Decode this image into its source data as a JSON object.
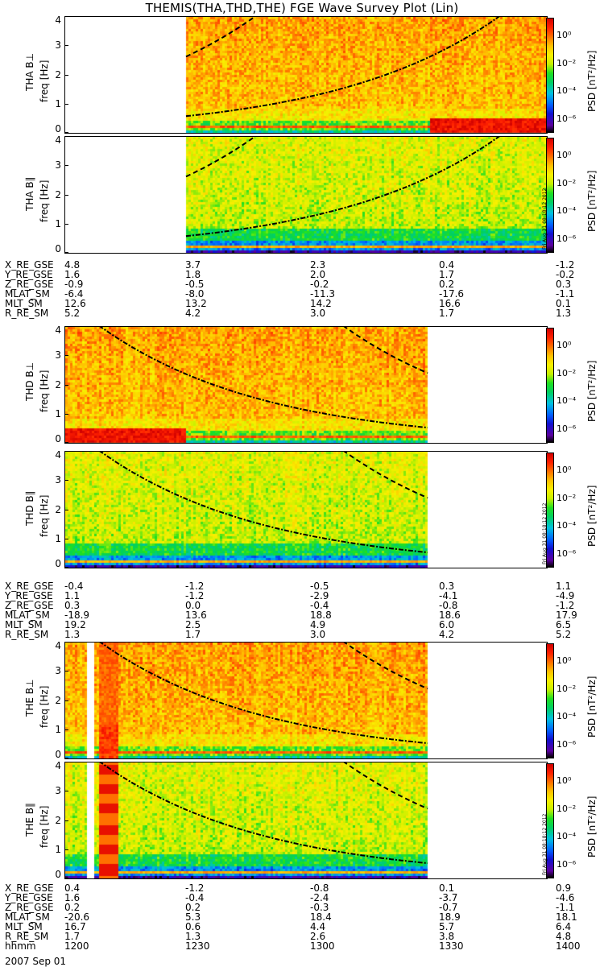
{
  "title": "THEMIS(THA,THD,THE) FGE Wave Survey Plot (Lin)",
  "date": "2007 Sep 01",
  "stamp": "Fri Aug 31 08:18:12 2012",
  "psd_label": "PSD [nT²/Hz]",
  "colorbar_ticks": [
    "10⁰",
    "10⁻²",
    "10⁻⁴",
    "10⁻⁶"
  ],
  "freq_ticks": [
    "0",
    "1",
    "2",
    "3",
    "4"
  ],
  "chart_data": {
    "type": "heatmap",
    "title": "THEMIS(THA,THD,THE) FGE Wave Survey Plot (Lin)",
    "xlabel": "hhmm",
    "ylabel": "freq [Hz]",
    "colorbar_label": "PSD [nT²/Hz]",
    "ylim": [
      0,
      4
    ],
    "colorbar_range_log10": [
      -7,
      1.3
    ],
    "time_ticks": [
      "1200",
      "1230",
      "1300",
      "1330",
      "1400"
    ],
    "panels": [
      {
        "label": "THA B⊥",
        "data_start": "1230",
        "data_end": "1400",
        "strong_low_band_from": "1330"
      },
      {
        "label": "THA B∥",
        "data_start": "1230",
        "data_end": "1400"
      },
      {
        "label": "THD B⊥",
        "data_start": "1200",
        "data_end": "1330",
        "strong_low_band_until": "1230"
      },
      {
        "label": "THD B∥",
        "data_start": "1200",
        "data_end": "1330"
      },
      {
        "label": "THE B⊥",
        "data_start": "1200",
        "data_end": "1330",
        "gap": [
          "1205",
          "1207"
        ],
        "burst": [
          "1208",
          "1213"
        ]
      },
      {
        "label": "THE B∥",
        "data_start": "1200",
        "data_end": "1330",
        "gap": [
          "1205",
          "1207"
        ],
        "burst": [
          "1208",
          "1213"
        ]
      }
    ],
    "ephemeris": [
      {
        "probe": "THA",
        "rows": [
          {
            "name": "X_RE_GSE",
            "values": [
              "4.8",
              "3.7",
              "2.3",
              "0.4",
              "-1.2"
            ]
          },
          {
            "name": "Y_RE_GSE",
            "values": [
              "1.6",
              "1.8",
              "2.0",
              "1.7",
              "-0.2"
            ]
          },
          {
            "name": "Z_RE_GSE",
            "values": [
              "-0.9",
              "-0.5",
              "-0.2",
              "0.2",
              "0.3"
            ]
          },
          {
            "name": "MLAT_SM",
            "values": [
              "-6.4",
              "-8.0",
              "-11.3",
              "-17.6",
              "-1.1"
            ]
          },
          {
            "name": "MLT_SM",
            "values": [
              "12.6",
              "13.2",
              "14.2",
              "16.6",
              "0.1"
            ]
          },
          {
            "name": "R_RE_SM",
            "values": [
              "5.2",
              "4.2",
              "3.0",
              "1.7",
              "1.3"
            ]
          }
        ]
      },
      {
        "probe": "THD",
        "rows": [
          {
            "name": "X_RE_GSE",
            "values": [
              "-0.4",
              "-1.2",
              "-0.5",
              "0.3",
              "1.1"
            ]
          },
          {
            "name": "Y_RE_GSE",
            "values": [
              "1.1",
              "-1.2",
              "-2.9",
              "-4.1",
              "-4.9"
            ]
          },
          {
            "name": "Z_RE_GSE",
            "values": [
              "0.3",
              "0.0",
              "-0.4",
              "-0.8",
              "-1.2"
            ]
          },
          {
            "name": "MLAT_SM",
            "values": [
              "-18.9",
              "13.6",
              "18.8",
              "18.6",
              "17.9"
            ]
          },
          {
            "name": "MLT_SM",
            "values": [
              "19.2",
              "2.5",
              "4.9",
              "6.0",
              "6.5"
            ]
          },
          {
            "name": "R_RE_SM",
            "values": [
              "1.3",
              "1.7",
              "3.0",
              "4.2",
              "5.2"
            ]
          }
        ]
      },
      {
        "probe": "THE",
        "rows": [
          {
            "name": "X_RE_GSE",
            "values": [
              "0.4",
              "-1.2",
              "-0.8",
              "0.1",
              "0.9"
            ]
          },
          {
            "name": "Y_RE_GSE",
            "values": [
              "1.6",
              "-0.4",
              "-2.4",
              "-3.7",
              "-4.6"
            ]
          },
          {
            "name": "Z_RE_GSE",
            "values": [
              "0.2",
              "0.2",
              "-0.3",
              "-0.7",
              "-1.1"
            ]
          },
          {
            "name": "MLAT_SM",
            "values": [
              "-20.6",
              "5.3",
              "18.4",
              "18.9",
              "18.1"
            ]
          },
          {
            "name": "MLT_SM",
            "values": [
              "16.7",
              "0.6",
              "4.4",
              "5.7",
              "6.4"
            ]
          },
          {
            "name": "R_RE_SM",
            "values": [
              "1.7",
              "1.3",
              "2.6",
              "3.8",
              "4.8"
            ]
          },
          {
            "name": "hhmm",
            "values": [
              "1200",
              "1230",
              "1300",
              "1330",
              "1400"
            ]
          }
        ]
      }
    ]
  }
}
